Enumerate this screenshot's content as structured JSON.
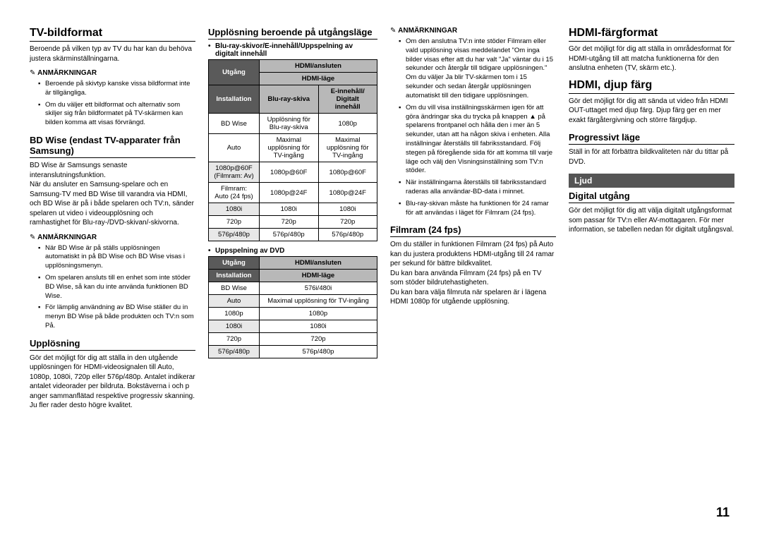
{
  "page_number": "11",
  "col1": {
    "h1": "TV-bildformat",
    "p1": "Beroende på vilken typ av TV du har kan du behöva justera skärminställningarna.",
    "notes_hdr1": "ANMÄRKNINGAR",
    "notes1": [
      "Beroende på skivtyp kanske vissa bildformat inte är tillgängliga.",
      "Om du väljer ett bildformat och alternativ som skiljer sig från bildformatet på TV-skärmen kan bilden komma att visas förvrängd."
    ],
    "h2": "BD Wise (endast TV-apparater från Samsung)",
    "p2": "BD Wise är Samsungs senaste interanslutningsfunktion.\nNär du ansluter en Samsung-spelare och en Samsung-TV med BD Wise till varandra via HDMI, och BD Wise är på i både spelaren och TV:n, sänder spelaren ut video i videoupplösning och ramhastighet för Blu-ray-/DVD-skivan/-skivorna.",
    "notes_hdr2": "ANMÄRKNINGAR",
    "notes2": [
      "När BD Wise är på ställs upplösningen automatiskt in på BD Wise och BD Wise visas i upplösningsmenyn.",
      "Om spelaren ansluts till en enhet som inte stöder BD Wise, så kan du inte använda funktionen BD Wise.",
      "För lämplig användning av BD Wise ställer du in menyn BD Wise på både produkten och TV:n som På."
    ],
    "h3": "Upplösning",
    "p3": "Gör det möjligt för dig att ställa in den utgående upplösningen för HDMI-videosignalen till Auto, 1080p, 1080i, 720p eller 576p/480p. Antalet indikerar antalet videorader per bildruta. Bokstäverna i och p anger sammanflätad respektive progressiv skanning. Ju fler rader desto högre kvalitet."
  },
  "col2": {
    "h1": "Upplösning beroende på utgångsläge",
    "cap1": "Blu-ray-skivor/E-innehåll/Uppspelning av digitalt innehåll",
    "tbl1": {
      "col_hdr_top": "HDMI/ansluten",
      "col_hdr_mid": "HDMI-läge",
      "row_hdr_top": "Utgång",
      "row_hdr_mid": "Installation",
      "sub_cols": [
        "Blu-ray-skiva",
        "E-innehåll/\nDigitalt\ninnehåll"
      ],
      "rows": [
        {
          "label": "BD Wise",
          "c1": "Upplösning för Blu-ray-skiva",
          "c2": "1080p"
        },
        {
          "label": "Auto",
          "c1": "Maximal upplösning för TV-ingång",
          "c2": "Maximal upplösning för TV-ingång"
        },
        {
          "label": "1080p@60F\n(Filmram: Av)",
          "c1": "1080p@60F",
          "c2": "1080p@60F"
        },
        {
          "label": "Filmram:\nAuto (24 fps)",
          "c1": "1080p@24F",
          "c2": "1080p@24F"
        },
        {
          "label": "1080i",
          "c1": "1080i",
          "c2": "1080i"
        },
        {
          "label": "720p",
          "c1": "720p",
          "c2": "720p"
        },
        {
          "label": "576p/480p",
          "c1": "576p/480p",
          "c2": "576p/480p"
        }
      ]
    },
    "cap2": "Uppspelning av DVD",
    "tbl2": {
      "col_hdr_top": "HDMI/ansluten",
      "col_hdr_mid": "HDMI-läge",
      "row_hdr_top": "Utgång",
      "row_hdr_mid": "Installation",
      "rows": [
        {
          "label": "BD Wise",
          "c1": "576i/480i"
        },
        {
          "label": "Auto",
          "c1": "Maximal upplösning för TV-ingång"
        },
        {
          "label": "1080p",
          "c1": "1080p"
        },
        {
          "label": "1080i",
          "c1": "1080i"
        },
        {
          "label": "720p",
          "c1": "720p"
        },
        {
          "label": "576p/480p",
          "c1": "576p/480p"
        }
      ]
    }
  },
  "col3": {
    "notes_hdr1": "ANMÄRKNINGAR",
    "notes1": [
      "Om den anslutna TV:n inte stöder Filmram eller vald upplösning visas meddelandet \"Om inga bilder visas efter att du har valt \"Ja\" väntar du i 15 sekunder och återgår till tidigare upplösningen.\" Om du väljer Ja blir TV-skärmen tom i 15 sekunder och sedan återgår upplösningen automatiskt till den tidigare upplösningen.",
      "Om du vill visa inställningsskärmen igen för att göra ändringar ska du trycka på knappen ▲ på spelarens frontpanel och hålla den i mer än 5 sekunder, utan att ha någon skiva i enheten. Alla inställningar återställs till fabriksstandard. Följ stegen på föregående sida för att komma till varje läge och välj den Visningsinställning som TV:n stöder.",
      "När inställningarna återställs till fabriksstandard raderas alla användar-BD-data i minnet.",
      "Blu-ray-skivan måste ha funktionen för 24 ramar för att användas i läget för Filmram (24 fps)."
    ],
    "h2": "Filmram (24 fps)",
    "p2": "Om du ställer in funktionen Filmram (24 fps) på Auto kan du justera produktens HDMI-utgång till 24 ramar per sekund för bättre bildkvalitet.\nDu kan bara använda Filmram (24 fps) på en TV som stöder bildrutehastigheten.\nDu kan bara välja filmruta när spelaren är i lägena HDMI 1080p för utgående upplösning."
  },
  "col4": {
    "h1": "HDMI-färgformat",
    "p1": "Gör det möjligt för dig att ställa in områdesformat för HDMI-utgång till att matcha funktionerna för den anslutna enheten (TV, skärm etc.).",
    "h2": "HDMI, djup färg",
    "p2": "Gör det möjligt för dig att sända ut video från HDMI OUT-uttaget med djup färg. Djup färg ger en mer exakt färgåtergivning och större färgdjup.",
    "h3": "Progressivt läge",
    "p3": "Ställ in för att förbättra bildkvaliteten när du tittar på DVD.",
    "section_bar": "Ljud",
    "h4": "Digital utgång",
    "p4": "Gör det möjligt för dig att välja digitalt utgångsformat som passar för TV:n eller AV-mottagaren. För mer information, se tabellen nedan för digitalt utgångsval."
  }
}
